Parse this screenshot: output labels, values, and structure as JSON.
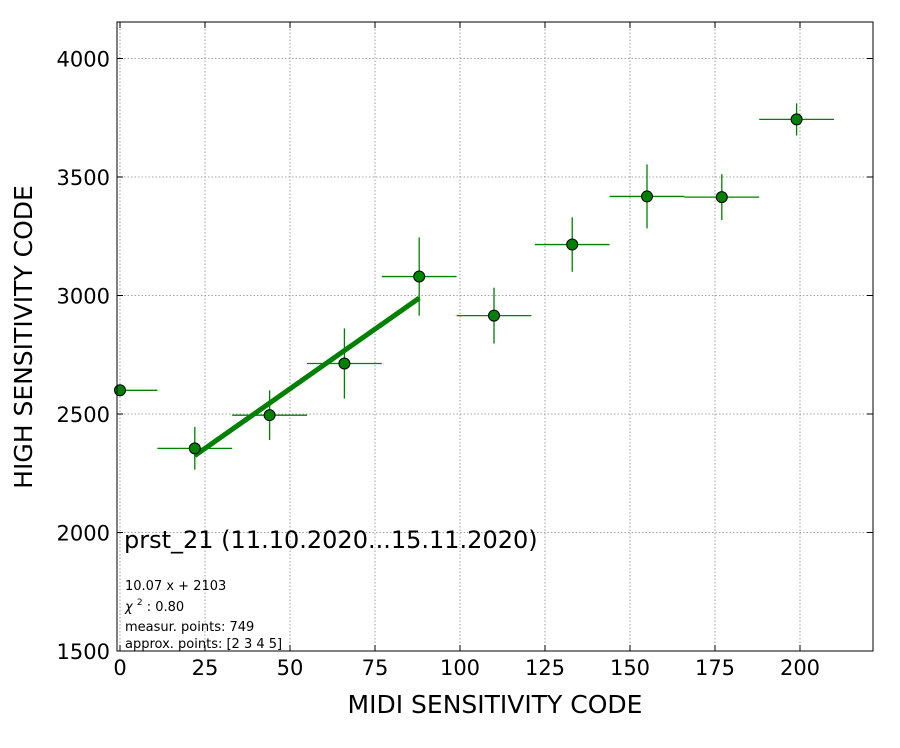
{
  "chart_data": {
    "type": "scatter",
    "title": "",
    "xlabel": "MIDI SENSITIVITY CODE",
    "ylabel": "HIGH SENSITIVITY CODE",
    "xlim": [
      -1,
      222
    ],
    "ylim": [
      1500,
      4150
    ],
    "xticks": [
      0,
      25,
      50,
      75,
      100,
      125,
      150,
      175,
      200
    ],
    "yticks": [
      1500,
      2000,
      2500,
      3000,
      3500,
      4000
    ],
    "grid": true,
    "colors": {
      "marker": "#008000",
      "marker_edge": "#000000",
      "errorbar": "#008000",
      "fit_line": "#008000",
      "grid": "#888888"
    },
    "points": [
      {
        "x": 0,
        "y": 2600,
        "xerr": 11,
        "yerr": 0
      },
      {
        "x": 22,
        "y": 2355,
        "xerr": 11,
        "yerr": 90
      },
      {
        "x": 44,
        "y": 2495,
        "xerr": 11,
        "yerr": 105
      },
      {
        "x": 66,
        "y": 2713,
        "xerr": 11,
        "yerr": 148
      },
      {
        "x": 88,
        "y": 3080,
        "xerr": 11,
        "yerr": 165
      },
      {
        "x": 110,
        "y": 2915,
        "xerr": 11,
        "yerr": 118
      },
      {
        "x": 133,
        "y": 3215,
        "xerr": 11,
        "yerr": 115
      },
      {
        "x": 155,
        "y": 3418,
        "xerr": 11,
        "yerr": 135
      },
      {
        "x": 177,
        "y": 3415,
        "xerr": 11,
        "yerr": 97
      },
      {
        "x": 199,
        "y": 3743,
        "xerr": 11,
        "yerr": 68
      }
    ],
    "fit": {
      "slope": 10.07,
      "intercept": 2103,
      "x_range": [
        22,
        88
      ]
    },
    "annotations": {
      "main": "prst_21 (11.10.2020...15.11.2020)",
      "equation": "10.07 x + 2103",
      "chi2_symbol": "χ",
      "chi2_exp": "2",
      "chi2_value": ": 0.80",
      "measur": "measur. points: 749",
      "approx": "approx. points: [2 3 4 5]"
    }
  }
}
